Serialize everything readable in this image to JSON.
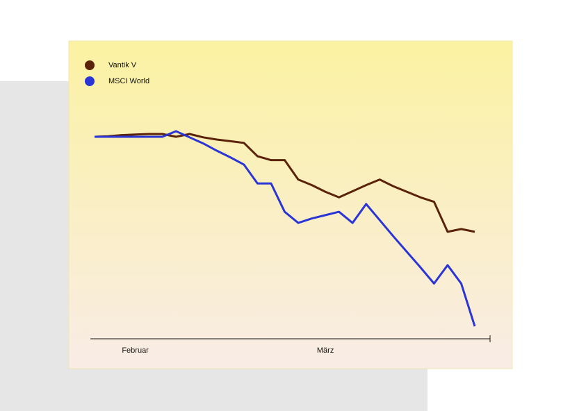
{
  "chart_data": {
    "type": "line",
    "categories": [
      null,
      null,
      null,
      "Februar",
      null,
      null,
      null,
      null,
      null,
      null,
      null,
      null,
      null,
      null,
      null,
      null,
      null,
      "März",
      null,
      null,
      null,
      null,
      null,
      null,
      null,
      null,
      null,
      null,
      null
    ],
    "series": [
      {
        "name": "Vantik V",
        "color": "#5a2208",
        "values": [
          100,
          100.1,
          100.3,
          100.4,
          100.5,
          100.5,
          100,
          100.5,
          99.9,
          99.5,
          99.2,
          98.9,
          96.5,
          95.8,
          95.8,
          92.3,
          91.3,
          90.1,
          89.1,
          90.2,
          91.3,
          92.3,
          91.1,
          90.1,
          89.1,
          88.3,
          82.9,
          83.4,
          82.9
        ]
      },
      {
        "name": "MSCI World",
        "color": "#2b35d6",
        "values": [
          100,
          100,
          100,
          100,
          100,
          100,
          101,
          99.9,
          98.8,
          97.5,
          96.3,
          95,
          91.6,
          91.6,
          86.5,
          84.5,
          85.3,
          85.9,
          86.5,
          84.5,
          87.9,
          85,
          82.1,
          79.3,
          76.5,
          73.6,
          76.9,
          73.6,
          65.9
        ]
      }
    ]
  }
}
